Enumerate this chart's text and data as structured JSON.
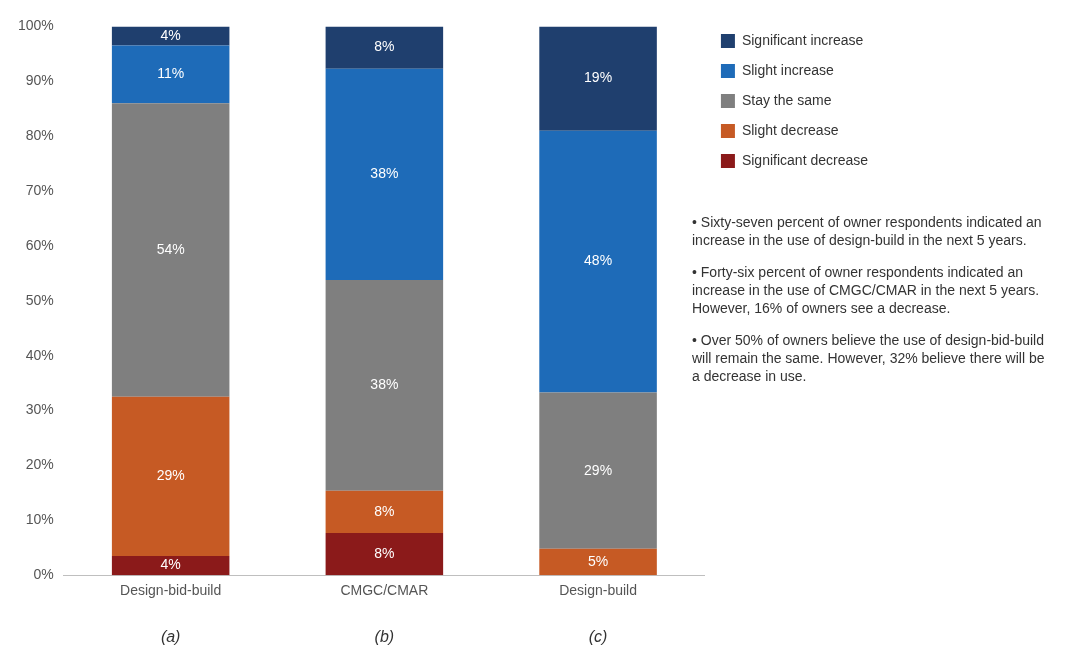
{
  "chart_data": {
    "type": "bar",
    "stacked": true,
    "categories": [
      "Design-bid-build",
      "CMGC/CMAR",
      "Design-build"
    ],
    "series": [
      {
        "name": "Significant decrease",
        "color": "#8b1a1a",
        "values": [
          3.5,
          7.7,
          0
        ],
        "value_labels": [
          "4%",
          "8%",
          null
        ]
      },
      {
        "name": "Slight decrease",
        "color": "#c65a24",
        "values": [
          29,
          7.7,
          4.8
        ],
        "value_labels": [
          "29%",
          "8%",
          "5%"
        ]
      },
      {
        "name": "Stay the same",
        "color": "#7f7f7f",
        "values": [
          53.5,
          38.4,
          28.5
        ],
        "value_labels": [
          "54%",
          "38%",
          "29%"
        ]
      },
      {
        "name": "Slight increase",
        "color": "#1e6bb8",
        "values": [
          10.5,
          38.5,
          47.7
        ],
        "value_labels": [
          "11%",
          "38%",
          "48%"
        ]
      },
      {
        "name": "Significant increase",
        "color": "#1f3f6e",
        "values": [
          3.5,
          7.7,
          19
        ],
        "value_labels": [
          "4%",
          "8%",
          "19%"
        ]
      }
    ],
    "ylim": [
      0,
      100
    ],
    "yticks": [
      {
        "value": 0,
        "label": "0%"
      },
      {
        "value": 10,
        "label": "10%"
      },
      {
        "value": 20,
        "label": "20%"
      },
      {
        "value": 30,
        "label": "30%"
      },
      {
        "value": 40,
        "label": "40%"
      },
      {
        "value": 50,
        "label": "50%"
      },
      {
        "value": 60,
        "label": "60%"
      },
      {
        "value": 70,
        "label": "70%"
      },
      {
        "value": 80,
        "label": "80%"
      },
      {
        "value": 90,
        "label": "90%"
      },
      {
        "value": 100,
        "label": "100%"
      }
    ],
    "grid": false,
    "legend": "top right",
    "annotations": [
      "(a)",
      "(b)",
      "(c)",
      "• Sixty-seven percent of owner respondents indicated an increase in the use of design-build in the next 5 years.",
      "• Forty-six percent of owner respondents indicated an increase in the use of CMGC/CMAR in the next 5 years. However, 16% of owners see a decrease.",
      "• Over 50% of owners believe the use of design-bid-build will remain the same. However, 32% believe there will be a decrease in use."
    ]
  }
}
